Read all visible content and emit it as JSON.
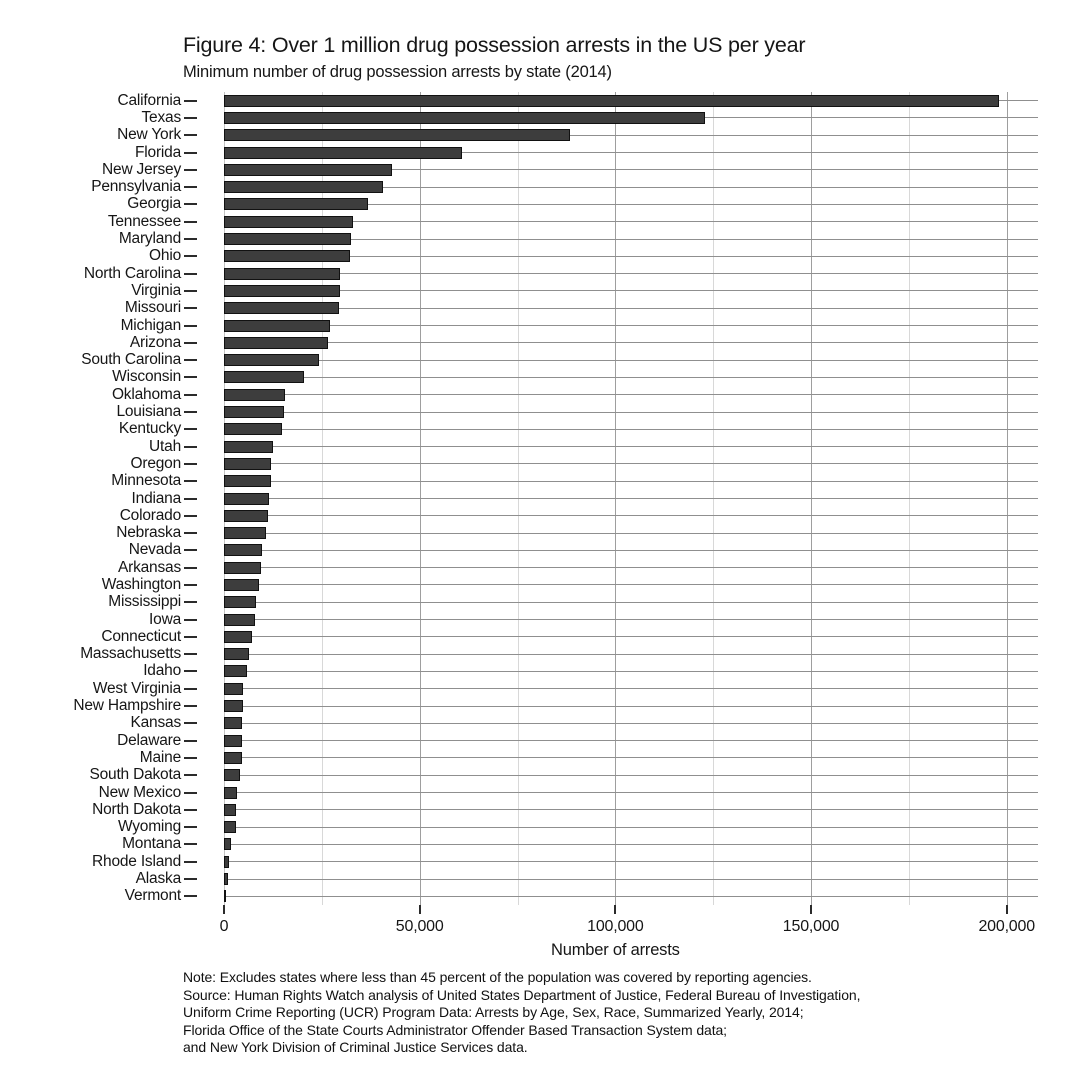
{
  "title": "Figure 4: Over 1 million drug possession arrests in the US per year",
  "subtitle": "Minimum number of drug possession arrests by state (2014)",
  "chart_data": {
    "type": "bar",
    "orientation": "horizontal",
    "title": "Figure 4: Over 1 million drug possession arrests in the US per year",
    "subtitle": "Minimum number of drug possession arrests by state (2014)",
    "xlabel": "Number of arrests",
    "ylabel": "",
    "xlim": [
      0,
      208000
    ],
    "x_ticks": [
      0,
      50000,
      100000,
      150000,
      200000
    ],
    "x_tick_labels": [
      "0",
      "50,000",
      "100,000",
      "150,000",
      "200,000"
    ],
    "x_minor_gridlines": [
      25000,
      75000,
      125000,
      175000
    ],
    "x_major_gridlines": [
      50000,
      100000,
      150000,
      200000
    ],
    "grid": "vertical major+minor gridlines, one horizontal reference line per category",
    "legend_position": "none",
    "categories": [
      "California",
      "Texas",
      "New York",
      "Florida",
      "New Jersey",
      "Pennsylvania",
      "Georgia",
      "Tennessee",
      "Maryland",
      "Ohio",
      "North Carolina",
      "Virginia",
      "Missouri",
      "Michigan",
      "Arizona",
      "South Carolina",
      "Wisconsin",
      "Oklahoma",
      "Louisiana",
      "Kentucky",
      "Utah",
      "Oregon",
      "Minnesota",
      "Indiana",
      "Colorado",
      "Nebraska",
      "Nevada",
      "Arkansas",
      "Washington",
      "Mississippi",
      "Iowa",
      "Connecticut",
      "Massachusetts",
      "Idaho",
      "West Virginia",
      "New Hampshire",
      "Kansas",
      "Delaware",
      "Maine",
      "South Dakota",
      "New Mexico",
      "North Dakota",
      "Wyoming",
      "Montana",
      "Rhode Island",
      "Alaska",
      "Vermont"
    ],
    "values": [
      198000,
      123000,
      88500,
      60800,
      42900,
      40700,
      36700,
      33000,
      32400,
      32200,
      29700,
      29600,
      29500,
      27100,
      26700,
      24300,
      20400,
      15500,
      15300,
      14700,
      12500,
      12000,
      11900,
      11500,
      11300,
      10800,
      9800,
      9500,
      9000,
      8300,
      7900,
      7100,
      6300,
      5900,
      4900,
      4800,
      4700,
      4600,
      4500,
      4000,
      3300,
      3100,
      3000,
      1900,
      1300,
      900,
      400
    ]
  },
  "x_axis": {
    "label": "Number of arrests",
    "tick_labels": [
      "0",
      "50,000",
      "100,000",
      "150,000",
      "200,000"
    ]
  },
  "notes": {
    "lines": [
      "Note: Excludes states where less than 45 percent of the population was covered by reporting agencies.",
      "Source: Human Rights Watch analysis of United States Department of Justice, Federal Bureau of Investigation,",
      "Uniform Crime Reporting (UCR) Program Data: Arrests by Age, Sex, Race, Summarized Yearly, 2014;",
      "Florida Office of the State Courts Administrator Offender Based Transaction System data;",
      "and New York Division of Criminal Justice Services data."
    ]
  },
  "colors": {
    "background": "#ffffff",
    "bar_fill": "#3d3d3d",
    "bar_border": "#111111",
    "major_grid": "#9e9e9e",
    "minor_grid": "#d8d8d8",
    "zero_axis": "#c2c2c2",
    "row_line": "#8f8f8f",
    "tick_mark": "#2b2b2b",
    "text": "#161616"
  }
}
